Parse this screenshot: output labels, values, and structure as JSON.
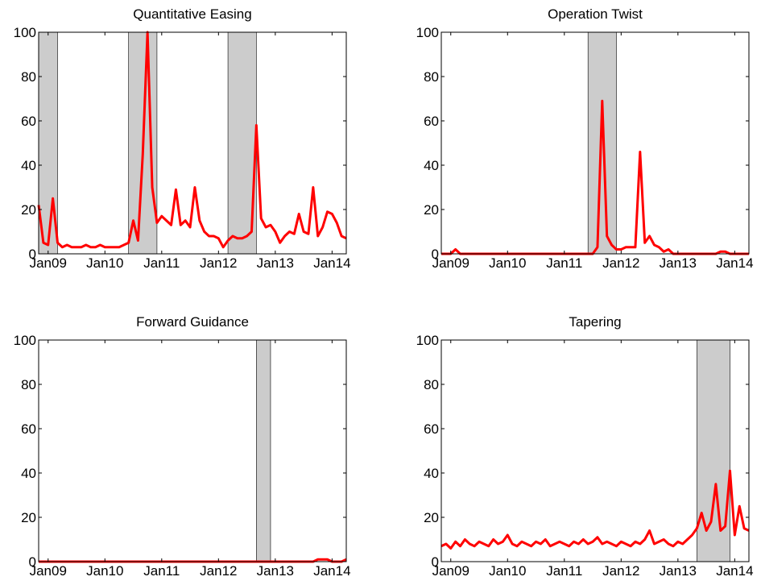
{
  "chart_data": [
    {
      "type": "line",
      "title": "Quantitative Easing",
      "x": [
        "Nov08",
        "Dec08",
        "Jan09",
        "Feb09",
        "Mar09",
        "Apr09",
        "May09",
        "Jun09",
        "Jul09",
        "Aug09",
        "Sep09",
        "Oct09",
        "Nov09",
        "Dec09",
        "Jan10",
        "Feb10",
        "Mar10",
        "Apr10",
        "May10",
        "Jun10",
        "Jul10",
        "Aug10",
        "Sep10",
        "Oct10",
        "Nov10",
        "Dec10",
        "Jan11",
        "Feb11",
        "Mar11",
        "Apr11",
        "May11",
        "Jun11",
        "Jul11",
        "Aug11",
        "Sep11",
        "Oct11",
        "Nov11",
        "Dec11",
        "Jan12",
        "Feb12",
        "Mar12",
        "Apr12",
        "May12",
        "Jun12",
        "Jul12",
        "Aug12",
        "Sep12",
        "Oct12",
        "Nov12",
        "Dec12",
        "Jan13",
        "Feb13",
        "Mar13",
        "Apr13",
        "May13",
        "Jun13",
        "Jul13",
        "Aug13",
        "Sep13",
        "Oct13",
        "Nov13",
        "Dec13",
        "Jan14",
        "Feb14",
        "Mar14",
        "Apr14"
      ],
      "series": [
        {
          "color": "#ff0000",
          "values": [
            22,
            5,
            4,
            25,
            5,
            3,
            4,
            3,
            3,
            3,
            4,
            3,
            3,
            4,
            3,
            3,
            3,
            3,
            4,
            5,
            15,
            6,
            45,
            100,
            30,
            14,
            17,
            15,
            13,
            29,
            13,
            15,
            12,
            30,
            15,
            10,
            8,
            8,
            7,
            3,
            6,
            8,
            7,
            7,
            8,
            10,
            58,
            16,
            12,
            13,
            10,
            5,
            8,
            10,
            9,
            18,
            10,
            9,
            30,
            8,
            12,
            19,
            18,
            14,
            8,
            7
          ]
        }
      ],
      "shaded": [
        [
          "Nov08",
          "Mar09"
        ],
        [
          "Jun10",
          "Dec10"
        ],
        [
          "Mar12",
          "Sep12"
        ]
      ],
      "shade_color": "#cccccc",
      "xlim": [
        "Nov08",
        "Apr14"
      ],
      "xticks": [
        "Jan09",
        "Jan10",
        "Jan11",
        "Jan12",
        "Jan13",
        "Jan14"
      ],
      "ylim": [
        0,
        100
      ],
      "yticks": [
        0,
        20,
        40,
        60,
        80,
        100
      ]
    },
    {
      "type": "line",
      "title": "Operation Twist",
      "x": [
        "Nov08",
        "Dec08",
        "Jan09",
        "Feb09",
        "Mar09",
        "Apr09",
        "May09",
        "Jun09",
        "Jul09",
        "Aug09",
        "Sep09",
        "Oct09",
        "Nov09",
        "Dec09",
        "Jan10",
        "Feb10",
        "Mar10",
        "Apr10",
        "May10",
        "Jun10",
        "Jul10",
        "Aug10",
        "Sep10",
        "Oct10",
        "Nov10",
        "Dec10",
        "Jan11",
        "Feb11",
        "Mar11",
        "Apr11",
        "May11",
        "Jun11",
        "Jul11",
        "Aug11",
        "Sep11",
        "Oct11",
        "Nov11",
        "Dec11",
        "Jan12",
        "Feb12",
        "Mar12",
        "Apr12",
        "May12",
        "Jun12",
        "Jul12",
        "Aug12",
        "Sep12",
        "Oct12",
        "Nov12",
        "Dec12",
        "Jan13",
        "Feb13",
        "Mar13",
        "Apr13",
        "May13",
        "Jun13",
        "Jul13",
        "Aug13",
        "Sep13",
        "Oct13",
        "Nov13",
        "Dec13",
        "Jan14",
        "Feb14",
        "Mar14",
        "Apr14"
      ],
      "series": [
        {
          "color": "#ff0000",
          "values": [
            0,
            0,
            0,
            2,
            0,
            0,
            0,
            0,
            0,
            0,
            0,
            0,
            0,
            0,
            0,
            0,
            0,
            0,
            0,
            0,
            0,
            0,
            0,
            0,
            0,
            0,
            0,
            0,
            0,
            0,
            0,
            0,
            0,
            3,
            69,
            8,
            4,
            2,
            2,
            3,
            3,
            3,
            46,
            5,
            8,
            4,
            3,
            1,
            2,
            0,
            0,
            0,
            0,
            0,
            0,
            0,
            0,
            0,
            0,
            1,
            1,
            0,
            0,
            0,
            0,
            0
          ]
        }
      ],
      "shaded": [
        [
          "Jun11",
          "Dec11"
        ]
      ],
      "shade_color": "#cccccc",
      "xlim": [
        "Nov08",
        "Apr14"
      ],
      "xticks": [
        "Jan09",
        "Jan10",
        "Jan11",
        "Jan12",
        "Jan13",
        "Jan14"
      ],
      "ylim": [
        0,
        100
      ],
      "yticks": [
        0,
        20,
        40,
        60,
        80,
        100
      ]
    },
    {
      "type": "line",
      "title": "Forward Guidance",
      "x": [
        "Nov08",
        "Dec08",
        "Jan09",
        "Feb09",
        "Mar09",
        "Apr09",
        "May09",
        "Jun09",
        "Jul09",
        "Aug09",
        "Sep09",
        "Oct09",
        "Nov09",
        "Dec09",
        "Jan10",
        "Feb10",
        "Mar10",
        "Apr10",
        "May10",
        "Jun10",
        "Jul10",
        "Aug10",
        "Sep10",
        "Oct10",
        "Nov10",
        "Dec10",
        "Jan11",
        "Feb11",
        "Mar11",
        "Apr11",
        "May11",
        "Jun11",
        "Jul11",
        "Aug11",
        "Sep11",
        "Oct11",
        "Nov11",
        "Dec11",
        "Jan12",
        "Feb12",
        "Mar12",
        "Apr12",
        "May12",
        "Jun12",
        "Jul12",
        "Aug12",
        "Sep12",
        "Oct12",
        "Nov12",
        "Dec12",
        "Jan13",
        "Feb13",
        "Mar13",
        "Apr13",
        "May13",
        "Jun13",
        "Jul13",
        "Aug13",
        "Sep13",
        "Oct13",
        "Nov13",
        "Dec13",
        "Jan14",
        "Feb14",
        "Mar14",
        "Apr14"
      ],
      "series": [
        {
          "color": "#ff0000",
          "values": [
            0,
            0,
            0,
            0,
            0,
            0,
            0,
            0,
            0,
            0,
            0,
            0,
            0,
            0,
            0,
            0,
            0,
            0,
            0,
            0,
            0,
            0,
            0,
            0,
            0,
            0,
            0,
            0,
            0,
            0,
            0,
            0,
            0,
            0,
            0,
            0,
            0,
            0,
            0,
            0,
            0,
            0,
            0,
            0,
            0,
            0,
            0,
            0,
            0,
            0,
            0,
            0,
            0,
            0,
            0,
            0,
            0,
            0,
            0,
            1,
            1,
            1,
            0,
            0,
            0,
            1
          ]
        }
      ],
      "shaded": [
        [
          "Sep12",
          "Dec12"
        ]
      ],
      "shade_color": "#cccccc",
      "xlim": [
        "Nov08",
        "Apr14"
      ],
      "xticks": [
        "Jan09",
        "Jan10",
        "Jan11",
        "Jan12",
        "Jan13",
        "Jan14"
      ],
      "ylim": [
        0,
        100
      ],
      "yticks": [
        0,
        20,
        40,
        60,
        80,
        100
      ]
    },
    {
      "type": "line",
      "title": "Tapering",
      "x": [
        "Nov08",
        "Dec08",
        "Jan09",
        "Feb09",
        "Mar09",
        "Apr09",
        "May09",
        "Jun09",
        "Jul09",
        "Aug09",
        "Sep09",
        "Oct09",
        "Nov09",
        "Dec09",
        "Jan10",
        "Feb10",
        "Mar10",
        "Apr10",
        "May10",
        "Jun10",
        "Jul10",
        "Aug10",
        "Sep10",
        "Oct10",
        "Nov10",
        "Dec10",
        "Jan11",
        "Feb11",
        "Mar11",
        "Apr11",
        "May11",
        "Jun11",
        "Jul11",
        "Aug11",
        "Sep11",
        "Oct11",
        "Nov11",
        "Dec11",
        "Jan12",
        "Feb12",
        "Mar12",
        "Apr12",
        "May12",
        "Jun12",
        "Jul12",
        "Aug12",
        "Sep12",
        "Oct12",
        "Nov12",
        "Dec12",
        "Jan13",
        "Feb13",
        "Mar13",
        "Apr13",
        "May13",
        "Jun13",
        "Jul13",
        "Aug13",
        "Sep13",
        "Oct13",
        "Nov13",
        "Dec13",
        "Jan14",
        "Feb14",
        "Mar14",
        "Apr14"
      ],
      "series": [
        {
          "color": "#ff0000",
          "values": [
            7,
            8,
            6,
            9,
            7,
            10,
            8,
            7,
            9,
            8,
            7,
            10,
            8,
            9,
            12,
            8,
            7,
            9,
            8,
            7,
            9,
            8,
            10,
            7,
            8,
            9,
            8,
            7,
            9,
            8,
            10,
            8,
            9,
            11,
            8,
            9,
            8,
            7,
            9,
            8,
            7,
            9,
            8,
            10,
            14,
            8,
            9,
            10,
            8,
            7,
            9,
            8,
            10,
            12,
            15,
            22,
            14,
            18,
            35,
            14,
            16,
            41,
            12,
            25,
            15,
            14
          ]
        }
      ],
      "shaded": [
        [
          "May13",
          "Dec13"
        ]
      ],
      "shade_color": "#cccccc",
      "xlim": [
        "Nov08",
        "Apr14"
      ],
      "xticks": [
        "Jan09",
        "Jan10",
        "Jan11",
        "Jan12",
        "Jan13",
        "Jan14"
      ],
      "ylim": [
        0,
        100
      ],
      "yticks": [
        0,
        20,
        40,
        60,
        80,
        100
      ]
    }
  ]
}
